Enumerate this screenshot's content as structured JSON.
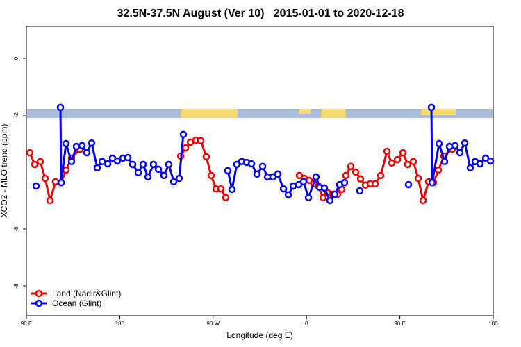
{
  "chart_data": {
    "type": "line",
    "title": "32.5N-37.5N August (Ver 10)   2015-01-01 to 2020-12-18",
    "xlabel": "Longitude (deg E)",
    "ylabel": "XCO2 - MLO trend (ppm)",
    "xlim": [
      90,
      540
    ],
    "xticks": [
      {
        "value": 90,
        "label": "90 E"
      },
      180,
      {
        "value": 270,
        "label": "90 W"
      },
      {
        "value": 360,
        "label": "0"
      },
      {
        "value": 450,
        "label": "90 E"
      },
      {
        "value": 540,
        "label": "180"
      }
    ],
    "ylim": [
      -9.05,
      1.12
    ],
    "yticks": [
      -8,
      -6,
      -2,
      0
    ],
    "legend": "bottom-left",
    "series": [
      {
        "name": "Land (Nadir&Glint)",
        "color": "#ee0000",
        "x": [
          93.3,
          98,
          103.4,
          108.1,
          112.8,
          118.1,
          123.5,
          128.2,
          133.5,
          141.6,
          null,
          238.8,
          243.5,
          248.2,
          253.4,
          258.1,
          263.4,
          268.1,
          272.8,
          277.5,
          282.2,
          null,
          353.2,
          357.9,
          362.6,
          367.2,
          371.3,
          376,
          380.6,
          385.3,
          390,
          394,
          398,
          402.7,
          407.4,
          412.1,
          416.8,
          421.5,
          426.2,
          431.5,
          437.6,
          442.2,
          447.6,
          453,
          457.6,
          463,
          467.7,
          472.4,
          477.7,
          482.4,
          487.1,
          492.5,
          500.5
        ],
        "values": [
          -3.32,
          -3.73,
          -3.63,
          -4.22,
          -5.0,
          -4.34,
          -4.37,
          -3.93,
          -3.51,
          -3.2,
          null,
          -3.44,
          -3.15,
          -2.95,
          -2.88,
          -2.9,
          -3.46,
          -4.12,
          -4.59,
          -4.59,
          -4.9,
          null,
          -4.12,
          -4.22,
          -4.29,
          -4.41,
          -4.49,
          -4.9,
          -4.73,
          -4.78,
          -4.78,
          -4.61,
          -4.12,
          -3.8,
          -4.0,
          -4.24,
          -4.46,
          -4.41,
          -4.41,
          -4.12,
          -3.27,
          -3.68,
          -3.56,
          -3.32,
          -3.73,
          -3.63,
          -4.22,
          -5.0,
          -4.34,
          -4.37,
          -3.93,
          -3.44,
          -3.2
        ]
      },
      {
        "name": "Ocean (Glint)",
        "color": "#0000ee",
        "x": [
          99.4,
          null,
          122.8,
          123.5,
          128.2,
          133.5,
          138.2,
          143.6,
          148.3,
          152.9,
          158.3,
          163,
          168.4,
          173,
          177.7,
          183.1,
          187.8,
          192.5,
          197.8,
          202.5,
          207.2,
          212.5,
          217.2,
          222.6,
          227.3,
          232,
          237.3,
          241.3,
          null,
          284.2,
          288.2,
          292.9,
          297.6,
          302.3,
          307,
          312.3,
          317.7,
          322.4,
          327.7,
          332.4,
          337.8,
          342.5,
          347.2,
          352.5,
          357.2,
          361.9,
          369.2,
          372.6,
          377.3,
          382.6,
          387.3,
          392,
          396.7,
          null,
          411.4,
          null,
          458.3,
          null,
          480.4,
          481.1,
          487.8,
          493.1,
          497.8,
          503.2,
          507.9,
          512.6,
          517.9,
          522.6,
          527.3,
          532.7,
          537.3
        ],
        "values": [
          -4.49,
          null,
          -1.73,
          -4.37,
          -3.0,
          -3.63,
          -3.1,
          -3.07,
          -3.32,
          -2.98,
          -3.85,
          -3.63,
          -3.71,
          -3.51,
          -3.61,
          -3.51,
          -3.49,
          -3.73,
          -4.02,
          -3.73,
          -4.17,
          -3.73,
          -3.9,
          -4.12,
          -3.73,
          -4.34,
          -4.22,
          -2.68,
          null,
          -3.95,
          -4.61,
          -3.73,
          -3.63,
          -3.66,
          -3.71,
          -4.07,
          -3.8,
          -4.17,
          -4.17,
          -4.07,
          -4.59,
          -4.8,
          -4.49,
          -4.44,
          -4.34,
          -4.9,
          -4.17,
          -4.54,
          -4.56,
          -5.0,
          -4.78,
          -4.44,
          -4.37,
          null,
          -4.66,
          null,
          -4.44,
          null,
          -1.73,
          -4.37,
          -3.0,
          -3.63,
          -3.1,
          -3.07,
          -3.32,
          -2.98,
          -3.85,
          -3.63,
          -3.71,
          -3.51,
          -3.61
        ]
      }
    ]
  }
}
